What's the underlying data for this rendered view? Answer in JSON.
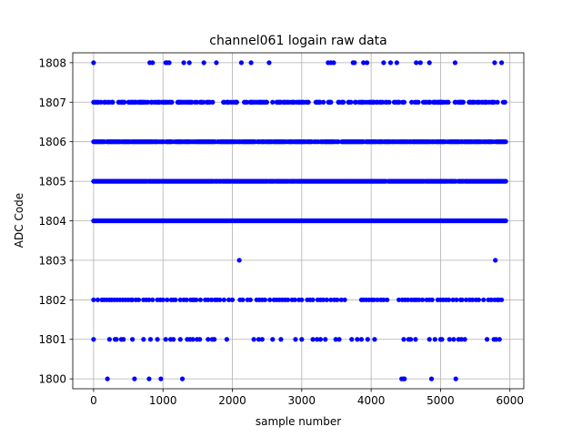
{
  "chart_data": {
    "type": "scatter",
    "title": "channel061 logain raw data",
    "xlabel": "sample number",
    "ylabel": "ADC Code",
    "xlim": [
      -300,
      6200
    ],
    "ylim": [
      1799.75,
      1808.25
    ],
    "x_ticks": [
      0,
      1000,
      2000,
      3000,
      4000,
      5000,
      6000
    ],
    "y_ticks": [
      1800,
      1801,
      1802,
      1803,
      1804,
      1805,
      1806,
      1807,
      1808
    ],
    "grid": true,
    "marker_color": "#0000ff",
    "x_range_samples": [
      0,
      5940
    ],
    "series": [
      {
        "level": 1808,
        "x": [
          0,
          810,
          850,
          1040,
          1060,
          1090,
          1300,
          1380,
          1590,
          1770,
          2130,
          2270,
          2530,
          3380,
          3420,
          3460,
          3740,
          3760,
          3890,
          3940,
          4180,
          4280,
          4370,
          4650,
          4710,
          4840,
          5210,
          5780,
          5880
        ]
      },
      {
        "level": 1807,
        "dense": true,
        "x_start": 0,
        "x_end": 5940,
        "density": 0.55,
        "gaps": [
          [
            1750,
            1830
          ],
          [
            2080,
            2120
          ],
          [
            3100,
            3200
          ],
          [
            4480,
            4560
          ],
          [
            5330,
            5410
          ]
        ]
      },
      {
        "level": 1806,
        "dense": true,
        "x_start": 0,
        "x_end": 5940,
        "density": 0.85,
        "gaps": [
          [
            1130,
            1160
          ],
          [
            2870,
            2890
          ]
        ]
      },
      {
        "level": 1805,
        "dense": true,
        "x_start": 0,
        "x_end": 5940,
        "density": 0.97,
        "gaps": []
      },
      {
        "level": 1804,
        "dense": true,
        "x_start": 0,
        "x_end": 5940,
        "density": 1.0,
        "gaps": []
      },
      {
        "level": 1803,
        "x": [
          2100,
          5790
        ]
      },
      {
        "level": 1802,
        "x": [
          0,
          60,
          120,
          150,
          190,
          230,
          260,
          300,
          340,
          380,
          420,
          460,
          500,
          540,
          560,
          610,
          650,
          720,
          760,
          800,
          850,
          920,
          960,
          1000,
          1060,
          1120,
          1150,
          1180,
          1250,
          1300,
          1340,
          1400,
          1430,
          1450,
          1480,
          1540,
          1610,
          1650,
          1700,
          1750,
          1780,
          1820,
          1880,
          1950,
          2000,
          2110,
          2150,
          2220,
          2260,
          2350,
          2390,
          2430,
          2470,
          2540,
          2600,
          2640,
          2680,
          2720,
          2760,
          2800,
          2860,
          2900,
          2960,
          3000,
          3080,
          3120,
          3160,
          3230,
          3270,
          3310,
          3360,
          3420,
          3470,
          3510,
          3570,
          3620,
          3860,
          3890,
          3930,
          3970,
          4010,
          4040,
          4090,
          4140,
          4180,
          4230,
          4400,
          4450,
          4490,
          4530,
          4580,
          4620,
          4650,
          4690,
          4740,
          4800,
          4840,
          4880,
          4960,
          5000,
          5040,
          5080,
          5120,
          5180,
          5230,
          5290,
          5310,
          5370,
          5420,
          5460,
          5510,
          5550,
          5620,
          5690,
          5730,
          5780,
          5820,
          5840,
          5880
        ]
      },
      {
        "level": 1801,
        "x": [
          0,
          230,
          310,
          330,
          400,
          430,
          560,
          720,
          820,
          920,
          1040,
          1110,
          1150,
          1250,
          1350,
          1390,
          1430,
          1490,
          1530,
          1650,
          1710,
          1740,
          1920,
          2310,
          2380,
          2430,
          2580,
          2700,
          2910,
          3000,
          3160,
          3220,
          3270,
          3340,
          3490,
          3540,
          3720,
          3800,
          3860,
          3950,
          4050,
          4470,
          4540,
          4570,
          4640,
          4840,
          4920,
          5000,
          5020,
          5130,
          5190,
          5260,
          5300,
          5350,
          5670,
          5770,
          5800,
          5850
        ]
      },
      {
        "level": 1800,
        "x": [
          200,
          590,
          800,
          970,
          1280,
          4440,
          4470,
          4480,
          4870,
          5220
        ]
      }
    ]
  }
}
